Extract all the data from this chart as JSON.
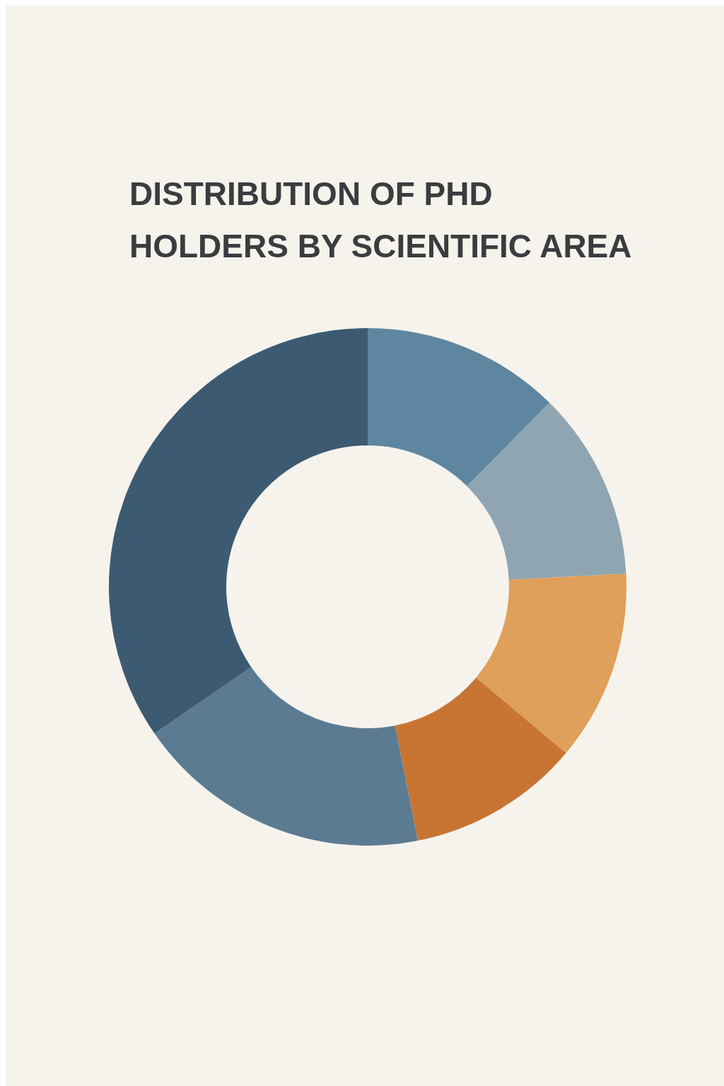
{
  "chart_data": {
    "type": "donut",
    "title": "DISTRIBUTION OF PHD HOLDERS BY SCIENTIFIC AREA",
    "categories": [
      null,
      null,
      null,
      null,
      null,
      null
    ],
    "values": [
      12.4,
      11.8,
      11.9,
      10.8,
      18.5,
      34.6
    ],
    "colors": [
      "#5f86a0",
      "#8fa6b2",
      "#dea05a",
      "#c87533",
      "#5b7b93",
      "#3c5b72"
    ]
  }
}
